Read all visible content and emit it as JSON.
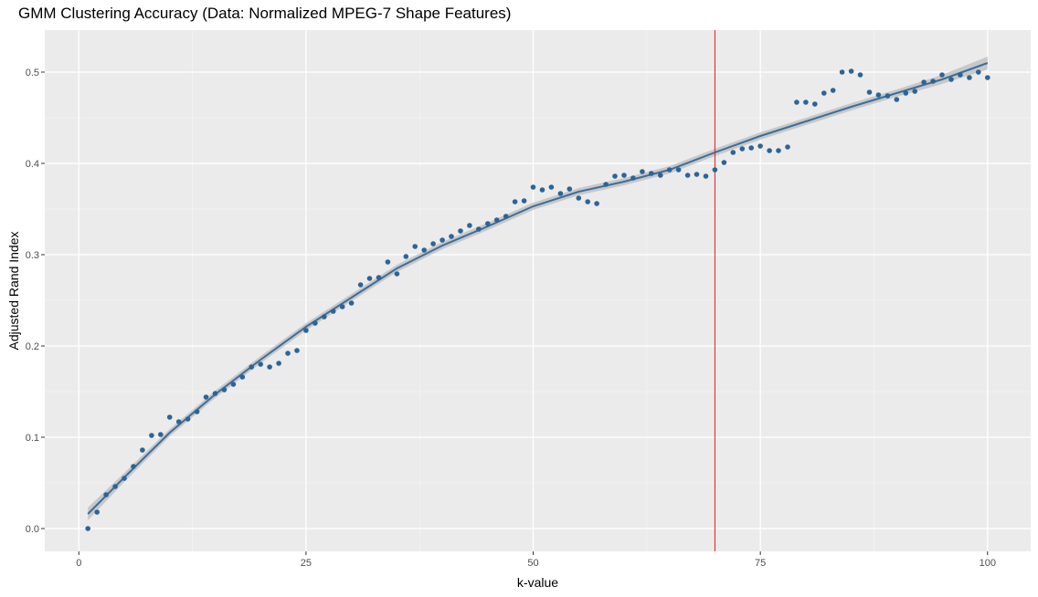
{
  "chart_data": {
    "type": "scatter",
    "title": "GMM Clustering Accuracy (Data: Normalized MPEG-7 Shape Features)",
    "xlabel": "k-value",
    "ylabel": "Adjusted Rand Index",
    "xlim": [
      -3.75,
      104.75
    ],
    "ylim": [
      -0.025,
      0.546
    ],
    "x_ticks": [
      0,
      25,
      50,
      75,
      100
    ],
    "y_ticks": [
      0.0,
      0.1,
      0.2,
      0.3,
      0.4,
      0.5
    ],
    "x_tick_labels": [
      "0",
      "25",
      "50",
      "75",
      "100"
    ],
    "y_tick_labels": [
      "0.0",
      "0.1",
      "0.2",
      "0.3",
      "0.4",
      "0.5"
    ],
    "vline": {
      "x": 70,
      "color": "#e41a1c"
    },
    "points": {
      "color": "#2c6496",
      "x": [
        1,
        2,
        3,
        4,
        5,
        6,
        7,
        8,
        9,
        10,
        11,
        12,
        13,
        14,
        15,
        16,
        17,
        18,
        19,
        20,
        21,
        22,
        23,
        24,
        25,
        26,
        27,
        28,
        29,
        30,
        31,
        32,
        33,
        34,
        35,
        36,
        37,
        38,
        39,
        40,
        41,
        42,
        43,
        44,
        45,
        46,
        47,
        48,
        49,
        50,
        51,
        52,
        53,
        54,
        55,
        56,
        57,
        58,
        59,
        60,
        61,
        62,
        63,
        64,
        65,
        66,
        67,
        68,
        69,
        70,
        71,
        72,
        73,
        74,
        75,
        76,
        77,
        78,
        79,
        80,
        81,
        82,
        83,
        84,
        85,
        86,
        87,
        88,
        89,
        90,
        91,
        92,
        93,
        94,
        95,
        96,
        97,
        98,
        99,
        100
      ],
      "y": [
        0.0,
        0.018,
        0.037,
        0.046,
        0.055,
        0.068,
        0.086,
        0.102,
        0.103,
        0.122,
        0.117,
        0.12,
        0.128,
        0.144,
        0.148,
        0.152,
        0.158,
        0.166,
        0.177,
        0.18,
        0.177,
        0.181,
        0.192,
        0.195,
        0.217,
        0.225,
        0.232,
        0.238,
        0.243,
        0.247,
        0.267,
        0.274,
        0.275,
        0.292,
        0.279,
        0.298,
        0.309,
        0.305,
        0.312,
        0.316,
        0.32,
        0.326,
        0.332,
        0.328,
        0.334,
        0.338,
        0.342,
        0.358,
        0.359,
        0.374,
        0.371,
        0.374,
        0.367,
        0.372,
        0.362,
        0.358,
        0.356,
        0.377,
        0.386,
        0.387,
        0.384,
        0.391,
        0.389,
        0.387,
        0.393,
        0.393,
        0.387,
        0.388,
        0.386,
        0.393,
        0.401,
        0.412,
        0.416,
        0.417,
        0.419,
        0.414,
        0.414,
        0.418,
        0.467,
        0.467,
        0.465,
        0.477,
        0.48,
        0.5,
        0.501,
        0.497,
        0.478,
        0.475,
        0.474,
        0.47,
        0.477,
        0.479,
        0.489,
        0.49,
        0.497,
        0.492,
        0.497,
        0.494,
        0.5,
        0.494
      ]
    },
    "smooth": {
      "method": "loess",
      "color": "#3b6e9c",
      "band_color": "#bfbfbf",
      "x": [
        1,
        5,
        10,
        15,
        20,
        25,
        30,
        35,
        40,
        45,
        50,
        55,
        60,
        65,
        70,
        75,
        80,
        85,
        90,
        95,
        100
      ],
      "y": [
        0.016,
        0.056,
        0.105,
        0.147,
        0.185,
        0.221,
        0.253,
        0.285,
        0.31,
        0.331,
        0.353,
        0.369,
        0.38,
        0.393,
        0.412,
        0.43,
        0.446,
        0.462,
        0.477,
        0.492,
        0.51
      ],
      "se": [
        0.007,
        0.005,
        0.004,
        0.004,
        0.004,
        0.004,
        0.004,
        0.004,
        0.004,
        0.004,
        0.004,
        0.004,
        0.004,
        0.004,
        0.004,
        0.004,
        0.004,
        0.004,
        0.004,
        0.005,
        0.007
      ]
    }
  }
}
